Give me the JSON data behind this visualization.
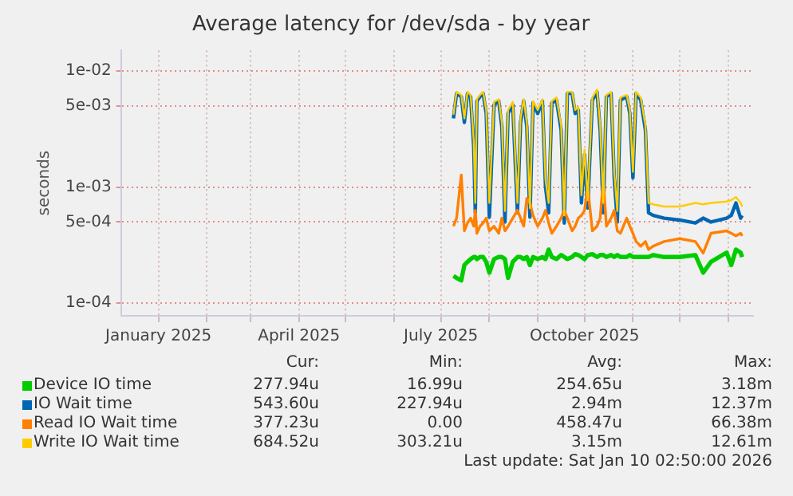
{
  "chart_data": {
    "type": "line",
    "title": "Average latency for /dev/sda - by year",
    "ylabel": "seconds",
    "log": "y",
    "grid": true,
    "legend": "bottom",
    "marker": "none",
    "line_style": "solid",
    "xlim": [
      "2024-12-08",
      "2026-01-17"
    ],
    "xticks": [
      {
        "value": "2025-01-01",
        "label": "January 2025"
      },
      {
        "value": "2025-02-01",
        "label": null
      },
      {
        "value": "2025-03-01",
        "label": null
      },
      {
        "value": "2025-04-01",
        "label": "April 2025"
      },
      {
        "value": "2025-05-01",
        "label": null
      },
      {
        "value": "2025-06-01",
        "label": null
      },
      {
        "value": "2025-07-01",
        "label": "July 2025"
      },
      {
        "value": "2025-08-01",
        "label": null
      },
      {
        "value": "2025-09-01",
        "label": null
      },
      {
        "value": "2025-10-01",
        "label": "October 2025"
      },
      {
        "value": "2025-11-01",
        "label": null
      },
      {
        "value": "2025-12-01",
        "label": null
      },
      {
        "value": "2026-01-01",
        "label": null
      }
    ],
    "ylim": [
      7.8e-05,
      0.015
    ],
    "yticks": [
      {
        "value": 0.0001,
        "label": "1e-04"
      },
      {
        "value": 0.0005,
        "label": "5e-04"
      },
      {
        "value": 0.001,
        "label": "1e-03"
      },
      {
        "value": 0.005,
        "label": "5e-03"
      },
      {
        "value": 0.01,
        "label": "1e-02"
      }
    ],
    "x": [
      "2025-07-09",
      "2025-07-11",
      "2025-07-14",
      "2025-07-16",
      "2025-07-18",
      "2025-07-20",
      "2025-07-22",
      "2025-07-23",
      "2025-07-24",
      "2025-07-26",
      "2025-07-28",
      "2025-07-30",
      "2025-08-01",
      "2025-08-04",
      "2025-08-07",
      "2025-08-09",
      "2025-08-11",
      "2025-08-13",
      "2025-08-16",
      "2025-08-19",
      "2025-08-21",
      "2025-08-23",
      "2025-08-25",
      "2025-08-27",
      "2025-08-29",
      "2025-09-01",
      "2025-09-04",
      "2025-09-06",
      "2025-09-08",
      "2025-09-10",
      "2025-09-13",
      "2025-09-16",
      "2025-09-18",
      "2025-09-20",
      "2025-09-23",
      "2025-09-25",
      "2025-09-27",
      "2025-09-29",
      "2025-10-01",
      "2025-10-03",
      "2025-10-06",
      "2025-10-09",
      "2025-10-11",
      "2025-10-13",
      "2025-10-15",
      "2025-10-18",
      "2025-10-20",
      "2025-10-22",
      "2025-10-24",
      "2025-10-28",
      "2025-10-30",
      "2025-11-01",
      "2025-11-03",
      "2025-11-06",
      "2025-11-09",
      "2025-11-11",
      "2025-11-14",
      "2025-11-21",
      "2025-12-01",
      "2025-12-11",
      "2025-12-16",
      "2025-12-21",
      "2025-12-31",
      "2026-01-03",
      "2026-01-06",
      "2026-01-09",
      "2026-01-10"
    ],
    "series": [
      {
        "name": "Device IO time",
        "color": "#00cc00",
        "values": [
          0.000172,
          0.000165,
          0.000157,
          0.000213,
          0.000227,
          0.00024,
          0.00025,
          0.00025,
          0.00024,
          0.00025,
          0.00025,
          0.000227,
          0.000183,
          0.00024,
          0.00025,
          0.00025,
          0.00024,
          0.000165,
          0.000227,
          0.00025,
          0.00025,
          0.00024,
          0.00025,
          0.000213,
          0.00025,
          0.00024,
          0.00025,
          0.00024,
          0.00029,
          0.00025,
          0.00024,
          0.00026,
          0.00025,
          0.00024,
          0.00025,
          0.000265,
          0.00026,
          0.00025,
          0.00024,
          0.00026,
          0.000265,
          0.00025,
          0.00026,
          0.00026,
          0.00025,
          0.00026,
          0.00025,
          0.00026,
          0.00025,
          0.00025,
          0.00026,
          0.00025,
          0.00025,
          0.00025,
          0.00025,
          0.00025,
          0.00026,
          0.00025,
          0.00025,
          0.00026,
          0.000183,
          0.000227,
          0.000273,
          0.000213,
          0.00029,
          0.000273,
          0.00025
        ]
      },
      {
        "name": "IO Wait time",
        "color": "#0066b3",
        "values": [
          0.0039,
          0.0064,
          0.006,
          0.0036,
          0.0064,
          0.006,
          0.0022,
          0.0006,
          0.0055,
          0.006,
          0.0064,
          0.0043,
          0.00055,
          0.0051,
          0.0055,
          0.0033,
          0.0005,
          0.0043,
          0.0051,
          0.0006,
          0.0036,
          0.0055,
          0.0033,
          0.00055,
          0.0053,
          0.0043,
          0.0055,
          0.001,
          0.0006,
          0.0053,
          0.0056,
          0.0031,
          0.00049,
          0.0064,
          0.0064,
          0.0043,
          0.0046,
          0.00073,
          0.0019,
          0.00066,
          0.0056,
          0.0066,
          0.0031,
          0.0006,
          0.006,
          0.0064,
          0.0012,
          0.0005,
          0.0056,
          0.006,
          0.0043,
          0.0012,
          0.0064,
          0.0056,
          0.0031,
          0.0006,
          0.00057,
          0.00054,
          0.00052,
          0.00049,
          0.00054,
          0.0005,
          0.00054,
          0.00057,
          0.00073,
          0.00054,
          0.00057
        ]
      },
      {
        "name": "Read IO Wait time",
        "color": "#ff8000",
        "values": [
          0.00046,
          0.00054,
          0.00127,
          0.00042,
          0.00049,
          0.00054,
          0.00046,
          0.00063,
          0.0004,
          0.00046,
          0.00049,
          0.00054,
          0.00042,
          0.00046,
          0.0004,
          0.00054,
          0.00042,
          0.00046,
          0.00054,
          0.00063,
          0.00054,
          0.00046,
          0.0008,
          0.00073,
          0.00057,
          0.00046,
          0.00054,
          0.00063,
          0.00049,
          0.0004,
          0.00046,
          0.00054,
          0.00063,
          0.00054,
          0.00042,
          0.00046,
          0.00054,
          0.00057,
          0.00063,
          0.001,
          0.00042,
          0.00046,
          0.00054,
          0.00116,
          0.00046,
          0.00054,
          0.00063,
          0.00042,
          0.0004,
          0.00054,
          0.00046,
          0.0004,
          0.00034,
          0.00031,
          0.00034,
          0.00029,
          0.00031,
          0.00034,
          0.00036,
          0.00034,
          0.00027,
          0.0004,
          0.00042,
          0.0004,
          0.00038,
          0.0004,
          0.00038
        ]
      },
      {
        "name": "Write IO Wait time",
        "color": "#ffcc00",
        "values": [
          0.0042,
          0.0066,
          0.0062,
          0.0039,
          0.0066,
          0.0062,
          0.0025,
          0.00073,
          0.0057,
          0.0062,
          0.0066,
          0.0046,
          0.00073,
          0.0054,
          0.0057,
          0.0036,
          0.00062,
          0.0046,
          0.0054,
          0.00073,
          0.0039,
          0.0057,
          0.0036,
          0.00066,
          0.0055,
          0.0046,
          0.0057,
          0.00116,
          0.00073,
          0.0055,
          0.0059,
          0.0034,
          0.00057,
          0.0066,
          0.0066,
          0.0046,
          0.0049,
          0.00085,
          0.0021,
          0.00077,
          0.0059,
          0.0069,
          0.0034,
          0.00073,
          0.0062,
          0.0066,
          0.00135,
          0.00062,
          0.0059,
          0.0062,
          0.0046,
          0.00135,
          0.0066,
          0.0059,
          0.0034,
          0.00073,
          0.00071,
          0.00068,
          0.00068,
          0.00073,
          0.00071,
          0.00073,
          0.00075,
          0.00077,
          0.00082,
          0.00073,
          0.00068
        ]
      }
    ],
    "annotations": [
      "Cur:",
      "Min:",
      "Avg:",
      "Max:",
      "277.94u",
      "16.99u",
      "254.65u",
      "3.18m",
      "543.60u",
      "227.94u",
      "2.94m",
      "12.37m",
      "377.23u",
      "0.00",
      "458.47u",
      "66.38m",
      "684.52u",
      "303.21u",
      "3.15m",
      "12.61m",
      "Last update: Sat Jan 10 02:50:00 2026"
    ]
  }
}
